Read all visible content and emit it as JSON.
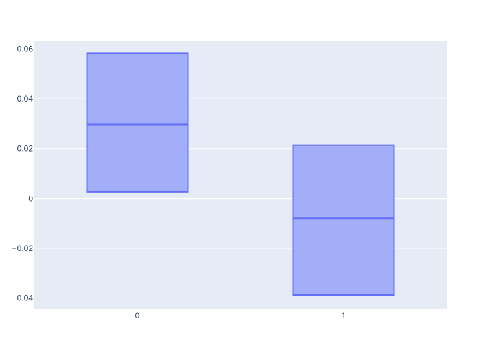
{
  "chart_data": {
    "type": "box",
    "title": "",
    "xlabel": "",
    "ylabel": "",
    "categories": [
      "0",
      "1"
    ],
    "boxes": [
      {
        "category": "0",
        "q1": 0.0026,
        "median": 0.0297,
        "q3": 0.0584
      },
      {
        "category": "1",
        "q1": -0.0388,
        "median": -0.008,
        "q3": 0.0214
      }
    ],
    "ylim": [
      -0.0443,
      0.0632
    ],
    "y_ticks": [
      -0.04,
      -0.02,
      0,
      0.02,
      0.04,
      0.06
    ],
    "y_tick_labels": [
      "−0.04",
      "−0.02",
      "0",
      "0.02",
      "0.04",
      "0.06"
    ],
    "grid": true,
    "colors": {
      "plot_background": "#e5ecf6",
      "gridline": "#ffffff",
      "box_fill": "#a2aef7",
      "box_line": "#636efa",
      "tick_text": "#2a3f5f"
    }
  }
}
